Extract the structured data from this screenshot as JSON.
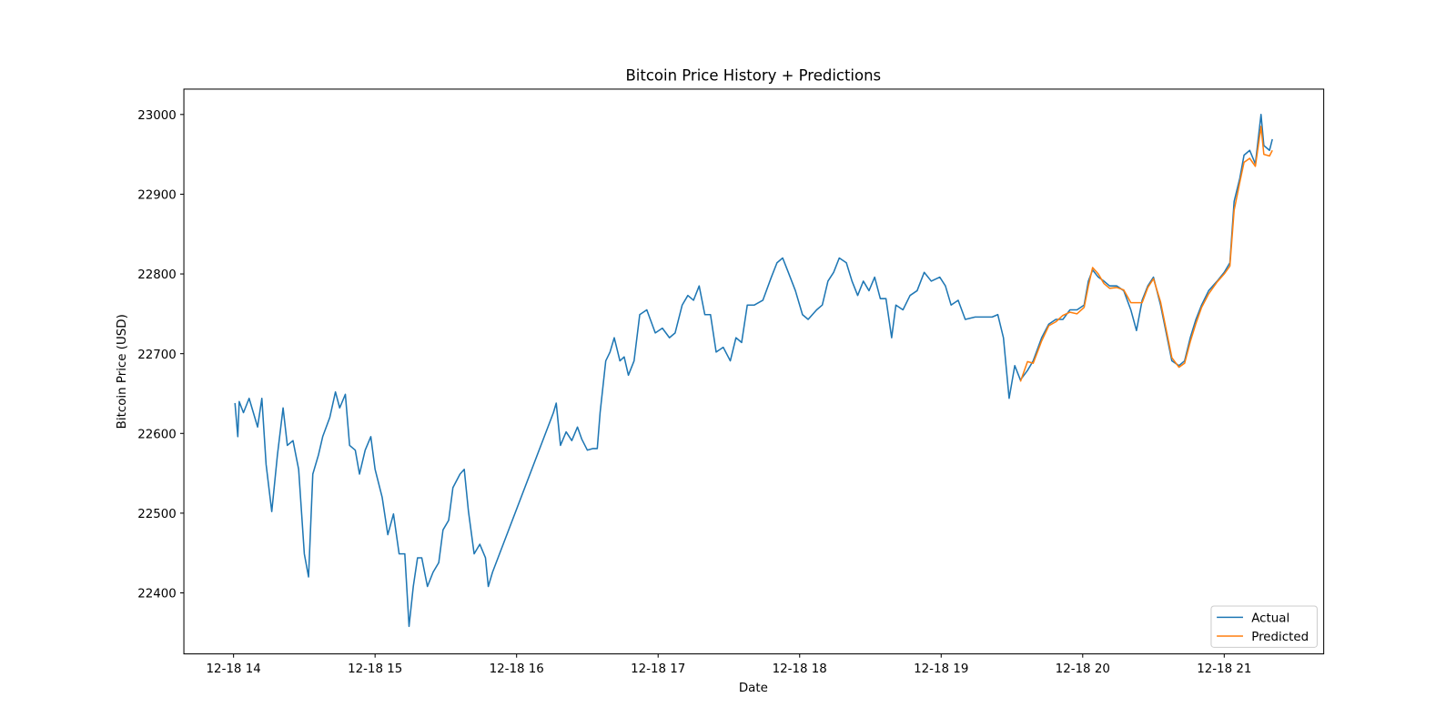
{
  "chart_data": {
    "type": "line",
    "title": "Bitcoin Price History + Predictions",
    "xlabel": "Date",
    "ylabel": "Bitcoin Price (USD)",
    "xlim": [
      13.649,
      21.703
    ],
    "xticks": [
      {
        "value": 14,
        "label": "12-18 14"
      },
      {
        "value": 15,
        "label": "12-18 15"
      },
      {
        "value": 16,
        "label": "12-18 16"
      },
      {
        "value": 17,
        "label": "12-18 17"
      },
      {
        "value": 18,
        "label": "12-18 18"
      },
      {
        "value": 19,
        "label": "12-18 19"
      },
      {
        "value": 20,
        "label": "12-18 20"
      },
      {
        "value": 21,
        "label": "12-18 21"
      }
    ],
    "ylim": [
      22323.5,
      23031.8
    ],
    "yticks": [
      22400,
      22500,
      22600,
      22700,
      22800,
      22900,
      23000
    ],
    "grid": false,
    "legend": "lower right",
    "series": [
      {
        "name": "Actual",
        "color": "#1f77b4",
        "x": [
          14.01,
          14.03,
          14.04,
          14.07,
          14.11,
          14.14,
          14.17,
          14.2,
          14.23,
          14.27,
          14.31,
          14.35,
          14.38,
          14.42,
          14.46,
          14.5,
          14.53,
          14.56,
          14.6,
          14.63,
          14.68,
          14.72,
          14.75,
          14.79,
          14.82,
          14.86,
          14.89,
          14.93,
          14.97,
          15.0,
          15.05,
          15.09,
          15.13,
          15.17,
          15.21,
          15.24,
          15.27,
          15.3,
          15.33,
          15.37,
          15.41,
          15.45,
          15.48,
          15.52,
          15.55,
          15.6,
          15.63,
          15.66,
          15.7,
          15.74,
          15.78,
          15.8,
          15.83,
          16.26,
          16.28,
          16.31,
          16.35,
          16.39,
          16.43,
          16.46,
          16.5,
          16.54,
          16.57,
          16.59,
          16.63,
          16.66,
          16.69,
          16.73,
          16.76,
          16.79,
          16.83,
          16.87,
          16.92,
          16.98,
          17.03,
          17.08,
          17.12,
          17.17,
          17.21,
          17.25,
          17.29,
          17.33,
          17.37,
          17.41,
          17.46,
          17.51,
          17.55,
          17.59,
          17.63,
          17.68,
          17.74,
          17.8,
          17.84,
          17.88,
          17.92,
          17.97,
          18.02,
          18.06,
          18.12,
          18.16,
          18.2,
          18.24,
          18.28,
          18.33,
          18.37,
          18.41,
          18.45,
          18.49,
          18.53,
          18.57,
          18.61,
          18.65,
          18.68,
          18.73,
          18.78,
          18.83,
          18.88,
          18.93,
          18.99,
          19.03,
          19.07,
          19.12,
          19.17,
          19.24,
          19.36,
          19.4,
          19.44,
          19.48,
          19.52,
          19.56,
          19.61,
          19.65,
          19.71,
          19.76,
          19.81,
          19.86,
          19.91,
          19.96,
          20.01,
          20.04,
          20.07,
          20.11,
          20.15,
          20.19,
          20.24,
          20.29,
          20.34,
          20.38,
          20.42,
          20.46,
          20.5,
          20.55,
          20.59,
          20.63,
          20.68,
          20.72,
          20.76,
          20.8,
          20.84,
          20.89,
          20.95,
          21.0,
          21.04,
          21.07,
          21.11,
          21.14,
          21.18,
          21.22,
          21.26,
          21.28,
          21.32,
          21.34
        ],
        "values": [
          22638,
          22596,
          22640,
          22626,
          22644,
          22626,
          22608,
          22644,
          22561,
          22502,
          22573,
          22632,
          22585,
          22591,
          22555,
          22449,
          22420,
          22549,
          22573,
          22596,
          22620,
          22652,
          22632,
          22649,
          22585,
          22579,
          22549,
          22579,
          22596,
          22555,
          22520,
          22473,
          22499,
          22449,
          22449,
          22358,
          22408,
          22444,
          22444,
          22408,
          22426,
          22438,
          22479,
          22491,
          22532,
          22549,
          22555,
          22502,
          22449,
          22461,
          22444,
          22408,
          22426,
          22626,
          22638,
          22585,
          22602,
          22591,
          22608,
          22593,
          22579,
          22581,
          22581,
          22626,
          22691,
          22702,
          22720,
          22691,
          22696,
          22673,
          22691,
          22749,
          22755,
          22726,
          22732,
          22720,
          22726,
          22761,
          22773,
          22767,
          22785,
          22749,
          22749,
          22702,
          22708,
          22691,
          22720,
          22714,
          22761,
          22761,
          22767,
          22796,
          22814,
          22820,
          22802,
          22779,
          22749,
          22743,
          22755,
          22761,
          22791,
          22802,
          22820,
          22814,
          22791,
          22773,
          22791,
          22779,
          22796,
          22769,
          22769,
          22720,
          22761,
          22755,
          22773,
          22779,
          22802,
          22791,
          22796,
          22785,
          22761,
          22767,
          22743,
          22746,
          22746,
          22749,
          22720,
          22644,
          22685,
          22667,
          22679,
          22691,
          22720,
          22737,
          22743,
          22743,
          22755,
          22755,
          22761,
          22791,
          22805,
          22796,
          22791,
          22785,
          22785,
          22779,
          22755,
          22729,
          22767,
          22785,
          22796,
          22761,
          22726,
          22691,
          22685,
          22691,
          22720,
          22743,
          22761,
          22779,
          22791,
          22802,
          22814,
          22891,
          22920,
          22949,
          22955,
          22938,
          23000,
          22961,
          22955,
          22969
        ]
      },
      {
        "name": "Predicted",
        "color": "#ff7f0e",
        "x": [
          19.56,
          19.61,
          19.65,
          19.71,
          19.76,
          19.81,
          19.86,
          19.91,
          19.96,
          20.01,
          20.04,
          20.07,
          20.11,
          20.15,
          20.19,
          20.24,
          20.29,
          20.34,
          20.42,
          20.46,
          20.5,
          20.55,
          20.59,
          20.63,
          20.68,
          20.72,
          20.76,
          20.8,
          20.84,
          20.89,
          20.95,
          21.0,
          21.04,
          21.07,
          21.11,
          21.14,
          21.18,
          21.22,
          21.26,
          21.28,
          21.32,
          21.34
        ],
        "values": [
          22665,
          22690,
          22688,
          22716,
          22735,
          22740,
          22748,
          22752,
          22750,
          22758,
          22785,
          22808,
          22800,
          22788,
          22782,
          22783,
          22780,
          22764,
          22764,
          22783,
          22794,
          22765,
          22730,
          22695,
          22683,
          22688,
          22715,
          22738,
          22758,
          22775,
          22790,
          22800,
          22810,
          22880,
          22915,
          22940,
          22945,
          22935,
          22985,
          22950,
          22948,
          22955
        ]
      }
    ]
  }
}
